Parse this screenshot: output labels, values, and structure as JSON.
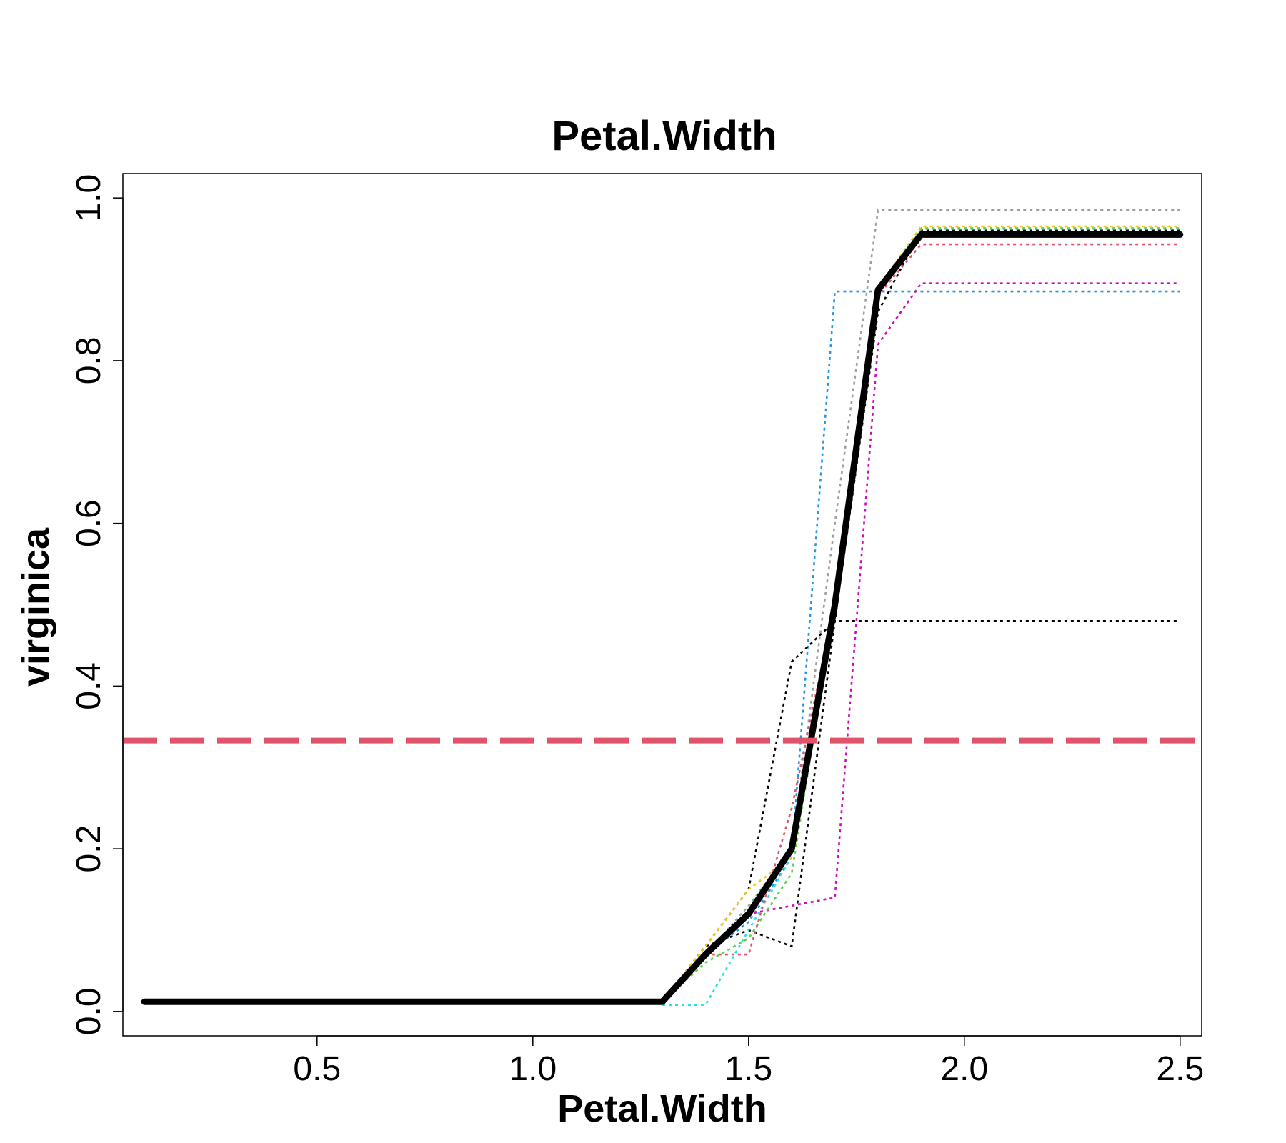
{
  "chart_data": {
    "type": "line",
    "title": "Petal.Width",
    "xlabel": "Petal.Width",
    "ylabel": "virginica",
    "xlim": [
      0.05,
      2.55
    ],
    "ylim": [
      -0.03,
      1.03
    ],
    "xticks": [
      "0.5",
      "1.0",
      "1.5",
      "2.0",
      "2.5"
    ],
    "yticks": [
      "0.0",
      "0.2",
      "0.4",
      "0.6",
      "0.8",
      "1.0"
    ],
    "grid": false,
    "legend": "none",
    "reference_line": {
      "y": 0.333,
      "color": "#DF536B",
      "style": "dashed"
    },
    "mean_series": {
      "color": "#000000",
      "x": [
        0.1,
        0.2,
        0.3,
        0.4,
        0.5,
        0.6,
        1.0,
        1.1,
        1.2,
        1.3,
        1.4,
        1.5,
        1.6,
        1.7,
        1.8,
        1.9,
        2.0,
        2.1,
        2.2,
        2.3,
        2.4,
        2.5
      ],
      "values": [
        0.012,
        0.012,
        0.012,
        0.012,
        0.012,
        0.012,
        0.012,
        0.012,
        0.012,
        0.012,
        0.07,
        0.12,
        0.2,
        0.5,
        0.887,
        0.955,
        0.955,
        0.955,
        0.955,
        0.955,
        0.955,
        0.955
      ]
    },
    "series": [
      {
        "color": "#9E9E9E",
        "x": [
          1.3,
          1.4,
          1.5,
          1.6,
          1.7,
          1.8,
          2.5
        ],
        "values": [
          0.012,
          0.07,
          0.13,
          0.2,
          0.6,
          0.985,
          0.985
        ]
      },
      {
        "color": "#2297E6",
        "x": [
          1.3,
          1.4,
          1.5,
          1.6,
          1.7,
          1.8,
          2.5
        ],
        "values": [
          0.012,
          0.07,
          0.11,
          0.19,
          0.885,
          0.885,
          0.885
        ]
      },
      {
        "color": "#CD0BBC",
        "x": [
          1.3,
          1.4,
          1.5,
          1.6,
          1.7,
          1.8,
          1.9,
          2.5
        ],
        "values": [
          0.012,
          0.07,
          0.12,
          0.13,
          0.14,
          0.82,
          0.895,
          0.895
        ]
      },
      {
        "color": "#000000",
        "x": [
          1.3,
          1.4,
          1.5,
          1.6,
          1.7,
          1.8,
          1.9,
          2.5
        ],
        "values": [
          0.012,
          0.08,
          0.1,
          0.08,
          0.48,
          0.86,
          0.96,
          0.96
        ]
      },
      {
        "color": "#000000",
        "x": [
          1.3,
          1.4,
          1.5,
          1.6,
          1.7,
          2.5
        ],
        "values": [
          0.012,
          0.08,
          0.15,
          0.43,
          0.48,
          0.48
        ]
      },
      {
        "color": "#28E2E5",
        "x": [
          1.3,
          1.4,
          1.5,
          1.6,
          1.7,
          1.8,
          1.9,
          2.5
        ],
        "values": [
          0.008,
          0.008,
          0.1,
          0.19,
          0.5,
          0.89,
          0.963,
          0.963
        ]
      },
      {
        "color": "#F5C710",
        "x": [
          1.3,
          1.4,
          1.5,
          1.6,
          1.7,
          1.8,
          1.9,
          2.5
        ],
        "values": [
          0.012,
          0.08,
          0.15,
          0.19,
          0.5,
          0.89,
          0.965,
          0.965
        ]
      },
      {
        "color": "#61D04F",
        "x": [
          1.3,
          1.4,
          1.5,
          1.6,
          1.7,
          1.8,
          1.9,
          2.5
        ],
        "values": [
          0.012,
          0.06,
          0.09,
          0.17,
          0.5,
          0.89,
          0.962,
          0.962
        ]
      },
      {
        "color": "#DF536B",
        "x": [
          1.3,
          1.4,
          1.5,
          1.6,
          1.7,
          1.8,
          1.9,
          2.5
        ],
        "values": [
          0.012,
          0.07,
          0.07,
          0.25,
          0.5,
          0.88,
          0.943,
          0.943
        ]
      }
    ]
  }
}
